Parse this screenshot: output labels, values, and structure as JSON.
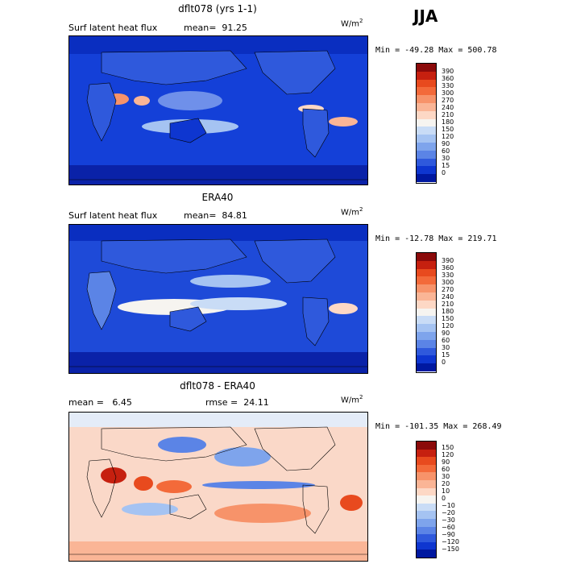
{
  "season": "JJA",
  "panels": [
    {
      "title": "dflt078 (yrs 1-1)",
      "var_label": "Surf latent heat flux",
      "stat1": "mean=  91.25",
      "stat2": "",
      "units": "W/m",
      "units_exp": "2",
      "minmax": "Min = -49.28 Max = 500.78",
      "bg": "#1440d8",
      "labels": [
        "390",
        "360",
        "330",
        "300",
        "270",
        "240",
        "210",
        "180",
        "150",
        "120",
        "90",
        "60",
        "30",
        "15",
        "0"
      ],
      "colors": [
        "#8b0a0a",
        "#c6200f",
        "#e84a1e",
        "#f36a3a",
        "#f7936a",
        "#fab596",
        "#fdd8c5",
        "#f6f4f0",
        "#c9dcf6",
        "#a5c3f2",
        "#7ea4ec",
        "#5b84e6",
        "#2f59dc",
        "#0e36d0",
        "#0018a0"
      ]
    },
    {
      "title": "ERA40",
      "var_label": "Surf latent heat flux",
      "stat1": "mean=  84.81",
      "stat2": "",
      "units": "W/m",
      "units_exp": "2",
      "minmax": "Min = -12.78 Max = 219.71",
      "bg": "#1e4ad8",
      "labels": [
        "390",
        "360",
        "330",
        "300",
        "270",
        "240",
        "210",
        "180",
        "150",
        "120",
        "90",
        "60",
        "30",
        "15",
        "0"
      ],
      "colors": [
        "#8b0a0a",
        "#c6200f",
        "#e84a1e",
        "#f36a3a",
        "#f7936a",
        "#fab596",
        "#fdd8c5",
        "#f6f4f0",
        "#c9dcf6",
        "#a5c3f2",
        "#7ea4ec",
        "#5b84e6",
        "#2f59dc",
        "#0e36d0",
        "#0018a0"
      ]
    },
    {
      "title": "dflt078 - ERA40",
      "var_label": "",
      "stat1": "mean =   6.45",
      "stat2": "rmse =  24.11",
      "units": "W/m",
      "units_exp": "2",
      "minmax": "Min = -101.35 Max = 268.49",
      "bg": "#fad8c8",
      "labels": [
        "150",
        "120",
        "90",
        "60",
        "30",
        "20",
        "10",
        "0",
        "−10",
        "−20",
        "−30",
        "−60",
        "−90",
        "−120",
        "−150"
      ],
      "colors": [
        "#8b0a0a",
        "#c6200f",
        "#e84a1e",
        "#f36a3a",
        "#f7936a",
        "#fab596",
        "#fdd8c5",
        "#f6f4f0",
        "#c9dcf6",
        "#a5c3f2",
        "#7ea4ec",
        "#5b84e6",
        "#2f59dc",
        "#0e36d0",
        "#0018a0"
      ]
    }
  ]
}
